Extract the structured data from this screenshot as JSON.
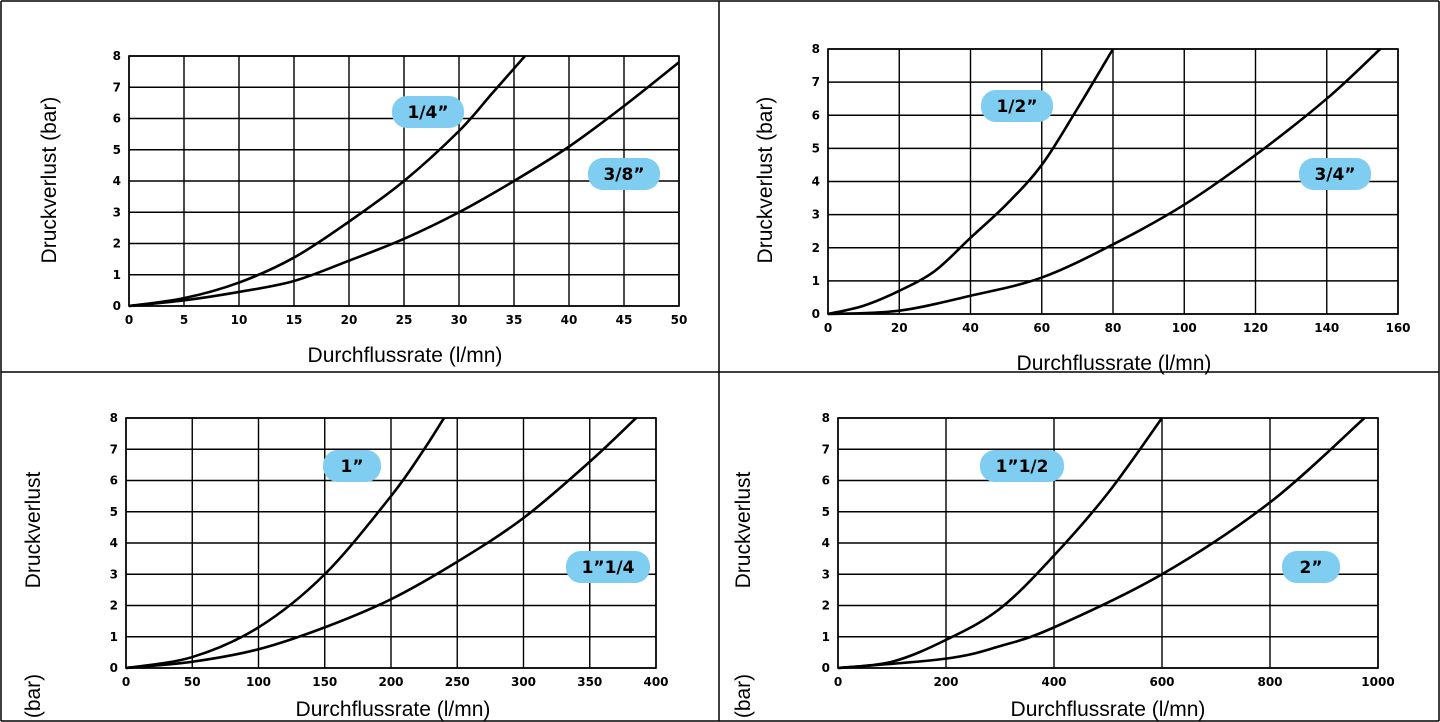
{
  "colors": {
    "curve": "#000000",
    "grid": "#000000",
    "label_bubble": "#7fcdf0",
    "border": "#000000"
  },
  "chart_data": [
    {
      "type": "line",
      "xlabel": "Durchflussrate (l/mn)",
      "ylabel": "Druckverlust (bar)",
      "ylabel_parts": [
        "Druckverlust (bar)"
      ],
      "xlim": [
        0,
        50
      ],
      "ylim": [
        0,
        8
      ],
      "xticks": [
        0,
        5,
        10,
        15,
        20,
        25,
        30,
        35,
        40,
        45,
        50
      ],
      "yticks": [
        0,
        1,
        2,
        3,
        4,
        5,
        6,
        7,
        8
      ],
      "grid": true,
      "series": [
        {
          "name": "1/4”",
          "x": [
            0,
            5,
            10,
            15,
            20,
            25,
            30,
            33,
            36
          ],
          "y": [
            0,
            0.25,
            0.75,
            1.55,
            2.7,
            4.0,
            5.6,
            6.8,
            8.0
          ]
        },
        {
          "name": "3/8”",
          "x": [
            0,
            5,
            10,
            15,
            20,
            25,
            30,
            35,
            40,
            45,
            50
          ],
          "y": [
            0,
            0.18,
            0.45,
            0.8,
            1.45,
            2.15,
            3.0,
            4.0,
            5.1,
            6.4,
            7.8
          ]
        }
      ]
    },
    {
      "type": "line",
      "xlabel": "Durchflussrate (l/mn)",
      "ylabel": "Druckverlust (bar)",
      "ylabel_parts": [
        "Druckverlust (bar)"
      ],
      "xlim": [
        0,
        160
      ],
      "ylim": [
        0,
        8
      ],
      "xticks": [
        0,
        20,
        40,
        60,
        80,
        100,
        120,
        140,
        160
      ],
      "yticks": [
        0,
        1,
        2,
        3,
        4,
        5,
        6,
        7,
        8
      ],
      "grid": true,
      "series": [
        {
          "name": "1/2”",
          "x": [
            0,
            10,
            20,
            30,
            40,
            50,
            60,
            70,
            80
          ],
          "y": [
            0,
            0.25,
            0.7,
            1.3,
            2.3,
            3.3,
            4.5,
            6.2,
            8.0
          ]
        },
        {
          "name": "3/4”",
          "x": [
            0,
            20,
            40,
            60,
            80,
            100,
            120,
            140,
            155
          ],
          "y": [
            0,
            0.1,
            0.55,
            1.1,
            2.1,
            3.3,
            4.8,
            6.5,
            8.0
          ]
        }
      ]
    },
    {
      "type": "line",
      "xlabel": "Durchflussrate (l/mn)",
      "ylabel": "Druckverlust (bar)",
      "ylabel_parts": [
        "Druckverlust",
        "(bar)"
      ],
      "xlim": [
        0,
        400
      ],
      "ylim": [
        0,
        8
      ],
      "xticks": [
        0,
        50,
        100,
        150,
        200,
        250,
        300,
        350,
        400
      ],
      "yticks": [
        0,
        1,
        2,
        3,
        4,
        5,
        6,
        7,
        8
      ],
      "grid": true,
      "series": [
        {
          "name": "1”",
          "x": [
            0,
            50,
            100,
            150,
            200,
            225,
            240
          ],
          "y": [
            0,
            0.35,
            1.3,
            3.0,
            5.5,
            7.0,
            8.0
          ]
        },
        {
          "name": "1”1/4",
          "x": [
            0,
            50,
            100,
            150,
            200,
            250,
            300,
            350,
            385
          ],
          "y": [
            0,
            0.2,
            0.6,
            1.3,
            2.2,
            3.4,
            4.8,
            6.6,
            8.0
          ]
        }
      ]
    },
    {
      "type": "line",
      "xlabel": "Durchflussrate (l/mn)",
      "ylabel": "Druckverlust (bar)",
      "ylabel_parts": [
        "Druckverlust",
        "(bar)"
      ],
      "xlim": [
        0,
        1000
      ],
      "ylim": [
        0,
        8
      ],
      "xticks": [
        0,
        200,
        400,
        600,
        800,
        1000
      ],
      "yticks": [
        0,
        1,
        2,
        3,
        4,
        5,
        6,
        7,
        8
      ],
      "grid": true,
      "series": [
        {
          "name": "1”1/2",
          "x": [
            0,
            100,
            200,
            300,
            400,
            500,
            600
          ],
          "y": [
            0,
            0.2,
            0.9,
            1.9,
            3.6,
            5.6,
            8.0
          ]
        },
        {
          "name": "2”",
          "x": [
            0,
            200,
            300,
            400,
            600,
            800,
            975
          ],
          "y": [
            0,
            0.3,
            0.7,
            1.3,
            3.0,
            5.3,
            8.0
          ]
        }
      ]
    }
  ]
}
